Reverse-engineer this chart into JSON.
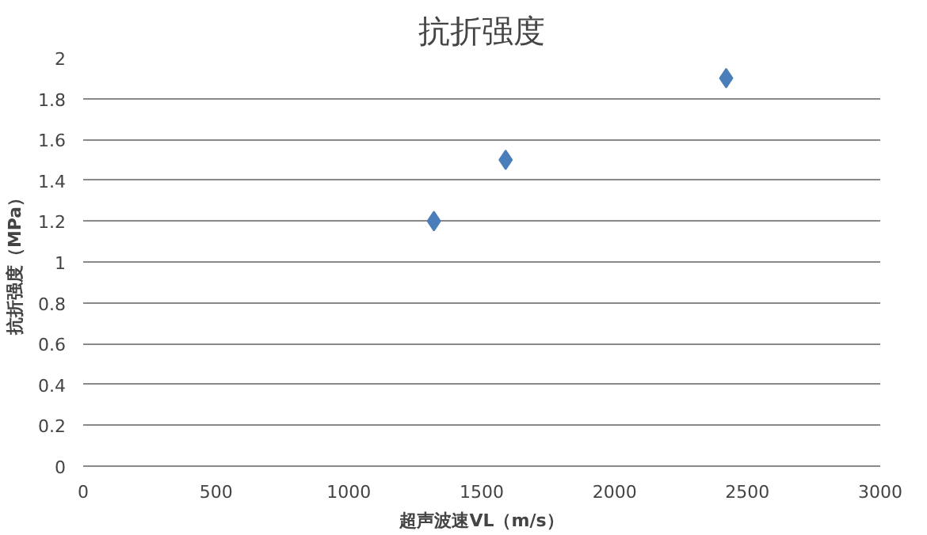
{
  "chart_data": {
    "type": "scatter",
    "title": "抗折强度",
    "xlabel": "超声波速VL（m/s）",
    "ylabel": "抗折强度（MPa）",
    "x": [
      1320,
      1590,
      2420
    ],
    "series": [
      {
        "color": "#4a7ebb",
        "values": [
          1.2,
          1.5,
          1.9
        ]
      }
    ],
    "xlim": [
      0,
      3000
    ],
    "xticks": [
      0,
      500,
      1000,
      1500,
      2000,
      2500,
      3000
    ],
    "ylim": [
      0,
      2
    ],
    "yticks": [
      0,
      {
        "value": 0.2,
        "label": "0.2"
      },
      {
        "value": 0.4,
        "label": "0.4"
      },
      {
        "value": 0.6,
        "label": "0.6"
      },
      {
        "value": 0.8,
        "label": "0.8"
      },
      1,
      {
        "value": 1.2,
        "label": "1.2"
      },
      {
        "value": 1.4,
        "label": "1.4"
      },
      {
        "value": 1.6,
        "label": "1.6"
      },
      {
        "value": 1.8,
        "label": "1.8"
      },
      2
    ],
    "grid": "y",
    "marker": "diamond"
  }
}
